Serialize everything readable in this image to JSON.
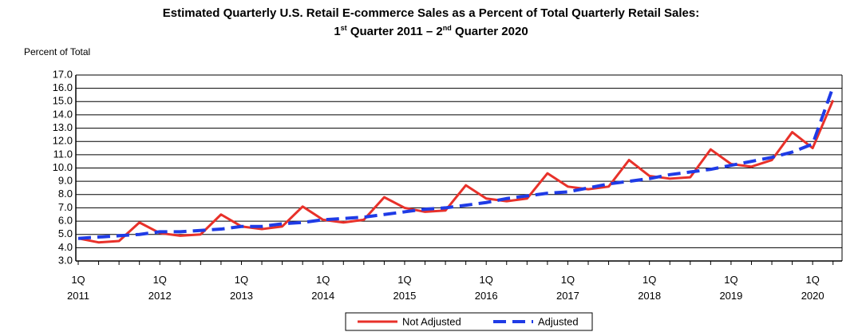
{
  "chart_data": {
    "type": "line",
    "title": "Estimated Quarterly U.S. Retail E-commerce Sales as a Percent of Total Quarterly Retail Sales:",
    "subtitle_parts": [
      "1",
      "st",
      " Quarter 2011 – 2",
      "nd",
      " Quarter 2020"
    ],
    "y_label": "Percent of Total",
    "categories": [
      "1Q\n2011",
      null,
      null,
      null,
      "1Q\n2012",
      null,
      null,
      null,
      "1Q\n2013",
      null,
      null,
      null,
      "1Q\n2014",
      null,
      null,
      null,
      "1Q\n2015",
      null,
      null,
      null,
      "1Q\n2016",
      null,
      null,
      null,
      "1Q\n2017",
      null,
      null,
      null,
      "1Q\n2018",
      null,
      null,
      null,
      "1Q\n2019",
      null,
      null,
      null,
      "1Q\n2020",
      null
    ],
    "series": [
      {
        "name": "Not Adjusted",
        "color": "#e8312a",
        "style": "solid",
        "values": [
          4.7,
          4.4,
          4.5,
          5.9,
          5.1,
          4.9,
          5.0,
          6.5,
          5.6,
          5.4,
          5.6,
          7.1,
          6.1,
          5.9,
          6.1,
          7.8,
          7.0,
          6.7,
          6.8,
          8.7,
          7.7,
          7.5,
          7.7,
          9.6,
          8.6,
          8.4,
          8.6,
          10.6,
          9.4,
          9.2,
          9.3,
          11.4,
          10.3,
          10.1,
          10.6,
          12.7,
          11.5,
          15.1
        ]
      },
      {
        "name": "Adjusted",
        "color": "#1f3be6",
        "style": "dashed",
        "values": [
          4.7,
          4.8,
          4.9,
          5.0,
          5.2,
          5.2,
          5.3,
          5.4,
          5.6,
          5.6,
          5.8,
          5.9,
          6.1,
          6.2,
          6.3,
          6.5,
          6.7,
          6.9,
          7.0,
          7.2,
          7.4,
          7.7,
          7.9,
          8.1,
          8.2,
          8.5,
          8.8,
          9.0,
          9.2,
          9.5,
          9.7,
          9.9,
          10.2,
          10.5,
          10.8,
          11.2,
          11.8,
          16.1
        ]
      }
    ],
    "ylim": [
      3,
      17
    ],
    "yticks": [
      {
        "value": 3,
        "label": "3.0"
      },
      {
        "value": 4,
        "label": "4.0"
      },
      {
        "value": 5,
        "label": "5.0"
      },
      {
        "value": 6,
        "label": "6.0"
      },
      {
        "value": 7,
        "label": "7.0"
      },
      {
        "value": 8,
        "label": "8.0"
      },
      {
        "value": 9,
        "label": "9.0"
      },
      {
        "value": 10,
        "label": "10.0"
      },
      {
        "value": 11,
        "label": "11.0"
      },
      {
        "value": 12,
        "label": "12.0"
      },
      {
        "value": 13,
        "label": "13.0"
      },
      {
        "value": 14,
        "label": "14.0"
      },
      {
        "value": 15,
        "label": "15.0"
      },
      {
        "value": 16,
        "label": "16.0"
      },
      {
        "value": 17,
        "label": "17.0"
      }
    ],
    "grid": true,
    "legend": "bottom"
  }
}
